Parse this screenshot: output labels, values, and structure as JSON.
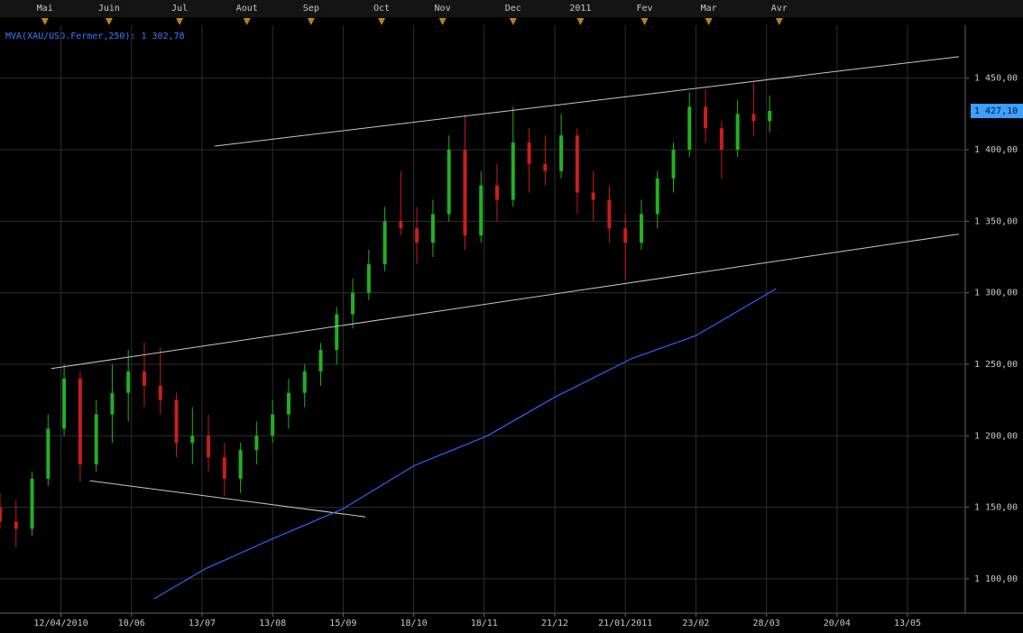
{
  "chart_data": {
    "type": "candlestick",
    "ohlc": {
      "x": [
        -19,
        -14,
        -9,
        -4,
        1,
        6,
        11,
        16,
        21,
        26,
        31,
        36,
        41,
        46,
        51,
        56,
        61,
        66,
        71,
        76,
        81,
        86,
        91,
        96,
        101,
        106,
        111,
        116,
        121,
        126,
        131,
        136,
        141,
        146,
        151,
        156,
        161,
        166,
        171,
        176,
        181,
        186,
        191,
        196,
        201,
        206,
        211,
        216,
        221
      ],
      "open": [
        1150,
        1140,
        1135,
        1170,
        1205,
        1240,
        1180,
        1215,
        1230,
        1245,
        1235,
        1225,
        1195,
        1200,
        1185,
        1170,
        1190,
        1200,
        1215,
        1230,
        1245,
        1260,
        1285,
        1300,
        1320,
        1350,
        1345,
        1335,
        1355,
        1400,
        1340,
        1375,
        1365,
        1405,
        1390,
        1385,
        1410,
        1370,
        1365,
        1345,
        1335,
        1355,
        1380,
        1400,
        1430,
        1415,
        1400,
        1425,
        1420
      ],
      "high": [
        1160,
        1155,
        1175,
        1215,
        1250,
        1245,
        1225,
        1250,
        1260,
        1265,
        1262,
        1230,
        1220,
        1215,
        1195,
        1195,
        1210,
        1225,
        1240,
        1250,
        1265,
        1290,
        1310,
        1330,
        1360,
        1385,
        1360,
        1365,
        1410,
        1424,
        1385,
        1390,
        1430,
        1415,
        1410,
        1425,
        1415,
        1385,
        1375,
        1355,
        1365,
        1385,
        1405,
        1440,
        1442,
        1420,
        1435,
        1447,
        1438
      ],
      "low": [
        1135,
        1122,
        1130,
        1165,
        1200,
        1168,
        1175,
        1195,
        1210,
        1220,
        1215,
        1185,
        1180,
        1175,
        1158,
        1160,
        1180,
        1195,
        1205,
        1220,
        1235,
        1250,
        1275,
        1295,
        1315,
        1340,
        1320,
        1325,
        1350,
        1330,
        1335,
        1350,
        1360,
        1370,
        1375,
        1380,
        1355,
        1350,
        1335,
        1309,
        1330,
        1345,
        1370,
        1395,
        1405,
        1380,
        1395,
        1410,
        1412
      ],
      "close": [
        1140,
        1135,
        1170,
        1205,
        1240,
        1180,
        1215,
        1230,
        1245,
        1235,
        1225,
        1195,
        1200,
        1185,
        1170,
        1190,
        1200,
        1215,
        1230,
        1245,
        1260,
        1285,
        1300,
        1320,
        1350,
        1345,
        1335,
        1355,
        1400,
        1340,
        1375,
        1365,
        1405,
        1390,
        1385,
        1410,
        1370,
        1365,
        1345,
        1335,
        1355,
        1380,
        1400,
        1430,
        1415,
        1400,
        1425,
        1420,
        1427.1
      ],
      "up_color": "#22b022",
      "down_color": "#c81e1e"
    },
    "ma": {
      "name": "MVA(XAU/USD.Fermer,250):",
      "value_label": "1 302,78",
      "color": "#2f63ff",
      "x": [
        29,
        45,
        65,
        88,
        110,
        133,
        154,
        178,
        198,
        223
      ],
      "values": [
        1086,
        1107,
        1127,
        1149,
        1179,
        1200,
        1227,
        1254,
        1270,
        1302.78
      ]
    },
    "trendlines": [
      {
        "x": [
          48,
          280
        ],
        "values": [
          1402.5,
          1465
        ]
      },
      {
        "x": [
          -3,
          280
        ],
        "values": [
          1247,
          1341
        ]
      },
      {
        "x": [
          9,
          95
        ],
        "values": [
          1168.6,
          1143.3
        ]
      }
    ],
    "trendline_color": "#c8c8c8",
    "last_price": {
      "value": 1427.1,
      "label": "1 427,10"
    },
    "xlim": [
      -19,
      282
    ],
    "ylim": [
      1076,
      1487
    ],
    "xticks": [
      {
        "value": 0,
        "label": "12/04/2010"
      },
      {
        "value": 22,
        "label": "10/06"
      },
      {
        "value": 44,
        "label": "13/07"
      },
      {
        "value": 66,
        "label": "13/08"
      },
      {
        "value": 88,
        "label": "15/09"
      },
      {
        "value": 110,
        "label": "18/10"
      },
      {
        "value": 132,
        "label": "18/11"
      },
      {
        "value": 154,
        "label": "21/12"
      },
      {
        "value": 176,
        "label": "21/01/2011"
      },
      {
        "value": 198,
        "label": "23/02"
      },
      {
        "value": 220,
        "label": "28/03"
      },
      {
        "value": 242,
        "label": "20/04"
      },
      {
        "value": 264,
        "label": "13/05"
      }
    ],
    "top_ticks": [
      {
        "value": -5,
        "label": "Mai"
      },
      {
        "value": 15,
        "label": "Juin"
      },
      {
        "value": 37,
        "label": "Jul"
      },
      {
        "value": 58,
        "label": "Aout"
      },
      {
        "value": 78,
        "label": "Sep"
      },
      {
        "value": 100,
        "label": "Oct"
      },
      {
        "value": 119,
        "label": "Nov"
      },
      {
        "value": 141,
        "label": "Dec"
      },
      {
        "value": 162,
        "label": "2011"
      },
      {
        "value": 182,
        "label": "Fev"
      },
      {
        "value": 202,
        "label": "Mar"
      },
      {
        "value": 224,
        "label": "Avr"
      }
    ],
    "yticks": [
      {
        "value": 1100,
        "label": "1 100,00"
      },
      {
        "value": 1150,
        "label": "1 150,00"
      },
      {
        "value": 1200,
        "label": "1 200,00"
      },
      {
        "value": 1250,
        "label": "1 250,00"
      },
      {
        "value": 1300,
        "label": "1 300,00"
      },
      {
        "value": 1350,
        "label": "1 350,00"
      },
      {
        "value": 1400,
        "label": "1 400,00"
      },
      {
        "value": 1450,
        "label": "1 450,00"
      }
    ],
    "grid": true
  }
}
